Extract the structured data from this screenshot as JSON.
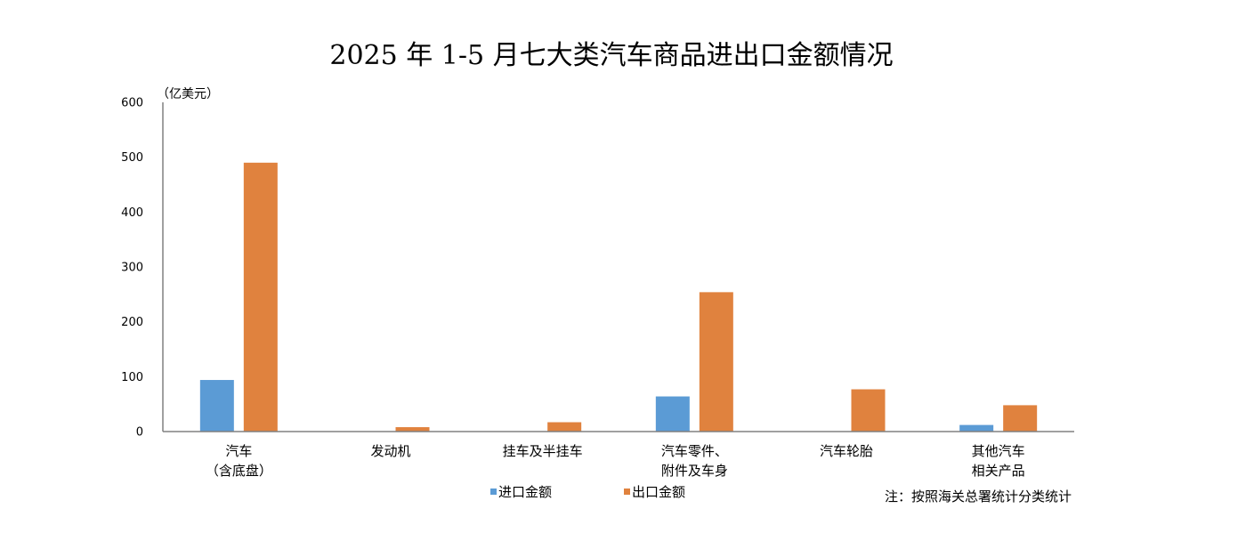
{
  "chart_data": {
    "type": "bar",
    "title": "2025 年 1-5 月七大类汽车商品进出口金额情况",
    "ylabel": "（亿美元）",
    "xlabel": "",
    "ylim": [
      0,
      600
    ],
    "yticks": [
      0,
      100,
      200,
      300,
      400,
      500,
      600
    ],
    "categories": [
      [
        "汽车",
        "（含底盘）"
      ],
      [
        "发动机"
      ],
      [
        "挂车及半挂车"
      ],
      [
        "汽车零件、",
        "附件及车身"
      ],
      [
        "汽车轮胎"
      ],
      [
        "其他汽车",
        "相关产品"
      ]
    ],
    "series": [
      {
        "name": "进口金额",
        "color": "#5b9bd5",
        "values": [
          94,
          0,
          0,
          64,
          0,
          12
        ]
      },
      {
        "name": "出口金额",
        "color": "#e0823e",
        "values": [
          490,
          8,
          17,
          254,
          77,
          48
        ]
      }
    ],
    "note": "注：按照海关总署统计分类统计",
    "grid": false,
    "legend_position": "bottom"
  }
}
